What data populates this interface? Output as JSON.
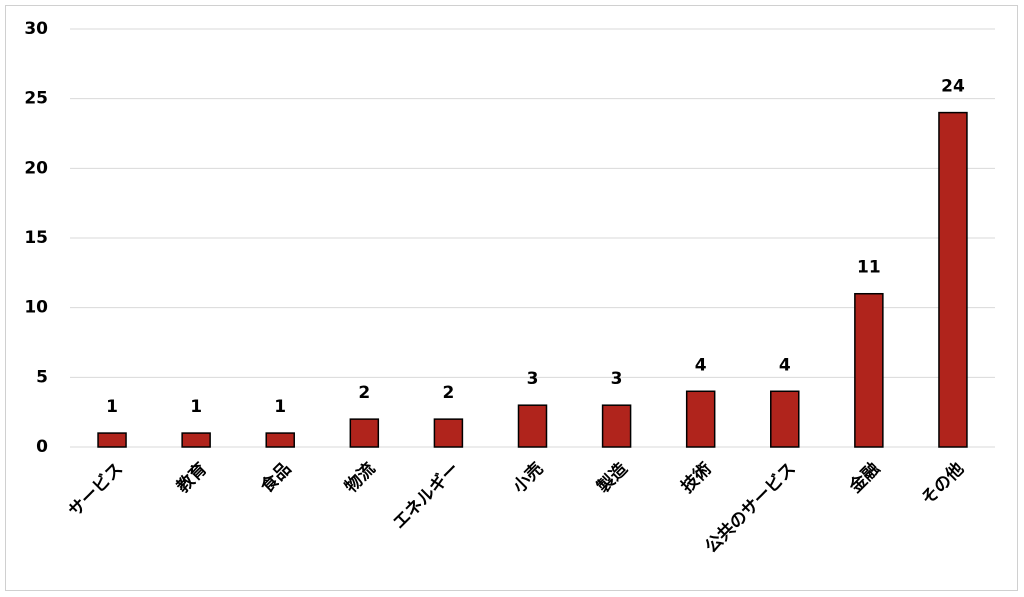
{
  "chart_data": {
    "type": "bar",
    "categories": [
      "サービス",
      "教育",
      "食品",
      "物流",
      "エネルギー",
      "小売",
      "製造",
      "技術",
      "公共のサービス",
      "金融",
      "その他"
    ],
    "values": [
      1,
      1,
      1,
      2,
      2,
      3,
      3,
      4,
      4,
      11,
      24
    ],
    "color": "#b0241c",
    "ylim": [
      0,
      30
    ],
    "yticks": [
      0,
      5,
      10,
      15,
      20,
      25,
      30
    ],
    "grid": true
  }
}
